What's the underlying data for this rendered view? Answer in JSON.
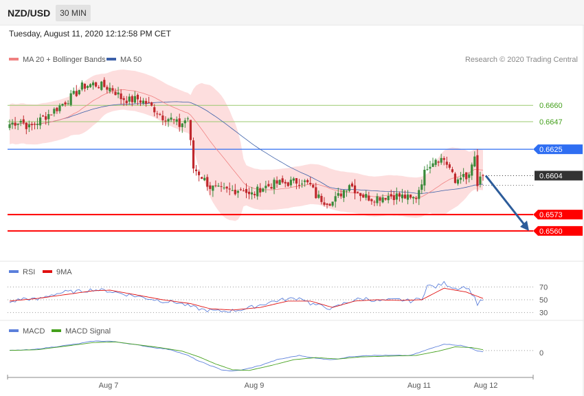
{
  "header": {
    "pair": "NZD/USD",
    "timeframe": "30 MIN",
    "datetime": "Tuesday, August 11, 2020 12:12:58 PM CET"
  },
  "colors": {
    "ma20": "#f08080",
    "ma50": "#3b5fa8",
    "band": "#fddede",
    "bull": "#3a8a3a",
    "bear": "#c0282d",
    "blue_level": "#2f6ef2",
    "red_level": "#ff0000",
    "green_level": "#9ac96e",
    "arrow": "#2d5c9a",
    "rsi": "#5b7fdb",
    "rsi_ma": "#e01010",
    "macd": "#5b7fdb",
    "macd_signal": "#44a01c"
  },
  "chart_data": [
    {
      "type": "candlestick",
      "legend": [
        {
          "name": "MA 20 + Bollinger Bands"
        },
        {
          "name": "MA 50"
        }
      ],
      "credit": "Research © 2020 Trading Central",
      "ylim": [
        0.6538,
        0.6699
      ],
      "x_ticks": [
        "Aug 7",
        "Aug 9",
        "Aug 11",
        "Aug 12"
      ],
      "levels": [
        {
          "label": "0.6660",
          "value": 0.666,
          "kind": "green"
        },
        {
          "label": "0.6647",
          "value": 0.6647,
          "kind": "green"
        },
        {
          "label": "0.6625",
          "value": 0.6625,
          "kind": "blue"
        },
        {
          "label": "0.6604",
          "value": 0.6604,
          "kind": "current"
        },
        {
          "label": "0.6573",
          "value": 0.6573,
          "kind": "red"
        },
        {
          "label": "0.6560",
          "value": 0.656,
          "kind": "red"
        }
      ],
      "close_anchors": [
        [
          0,
          0.6645
        ],
        [
          4,
          0.6648
        ],
        [
          7,
          0.6642
        ],
        [
          12,
          0.665
        ],
        [
          16,
          0.6656
        ],
        [
          20,
          0.6663
        ],
        [
          24,
          0.667
        ],
        [
          26,
          0.6675
        ],
        [
          30,
          0.6677
        ],
        [
          34,
          0.6675
        ],
        [
          37,
          0.6673
        ],
        [
          40,
          0.6666
        ],
        [
          43,
          0.6664
        ],
        [
          46,
          0.6665
        ],
        [
          49,
          0.6662
        ],
        [
          52,
          0.6657
        ],
        [
          55,
          0.6651
        ],
        [
          58,
          0.6649
        ],
        [
          61,
          0.6644
        ],
        [
          64,
          0.665
        ],
        [
          66,
          0.661
        ],
        [
          68,
          0.6606
        ],
        [
          72,
          0.6595
        ],
        [
          76,
          0.6592
        ],
        [
          80,
          0.6592
        ],
        [
          84,
          0.6594
        ],
        [
          86,
          0.6588
        ],
        [
          88,
          0.659
        ],
        [
          90,
          0.6594
        ],
        [
          93,
          0.6596
        ],
        [
          96,
          0.6598
        ],
        [
          99,
          0.6598
        ],
        [
          102,
          0.6599
        ],
        [
          105,
          0.66
        ],
        [
          108,
          0.6596
        ],
        [
          110,
          0.6588
        ],
        [
          113,
          0.6584
        ],
        [
          116,
          0.6583
        ],
        [
          119,
          0.659
        ],
        [
          122,
          0.6598
        ],
        [
          124,
          0.6593
        ],
        [
          127,
          0.6588
        ],
        [
          130,
          0.6586
        ],
        [
          133,
          0.6587
        ],
        [
          136,
          0.6588
        ],
        [
          139,
          0.6588
        ],
        [
          142,
          0.6587
        ],
        [
          144,
          0.6585
        ],
        [
          146,
          0.6587
        ],
        [
          148,
          0.66
        ],
        [
          150,
          0.6612
        ],
        [
          153,
          0.6618
        ],
        [
          156,
          0.6617
        ],
        [
          158,
          0.661
        ],
        [
          160,
          0.6598
        ],
        [
          162,
          0.6605
        ],
        [
          164,
          0.66
        ],
        [
          166,
          0.661
        ],
        [
          167,
          0.6618
        ],
        [
          168,
          0.6596
        ],
        [
          169,
          0.66
        ],
        [
          170,
          0.6604
        ]
      ],
      "current_price": 0.6604,
      "forecast_target": 0.656
    },
    {
      "type": "line",
      "name": "RSI panel",
      "legend": [
        {
          "name": "RSI"
        },
        {
          "name": "9MA"
        }
      ],
      "ylim": [
        20,
        80
      ],
      "y_ticks": [
        {
          "label": "70",
          "value": 70
        },
        {
          "label": "50",
          "value": 50
        },
        {
          "label": "30",
          "value": 30
        }
      ],
      "rsi_anchors": [
        [
          0,
          46
        ],
        [
          5,
          52
        ],
        [
          10,
          50
        ],
        [
          15,
          58
        ],
        [
          20,
          62
        ],
        [
          25,
          63
        ],
        [
          30,
          66
        ],
        [
          35,
          64
        ],
        [
          40,
          60
        ],
        [
          45,
          56
        ],
        [
          50,
          52
        ],
        [
          55,
          48
        ],
        [
          60,
          46
        ],
        [
          63,
          42
        ],
        [
          66,
          38
        ],
        [
          70,
          34
        ],
        [
          75,
          32
        ],
        [
          80,
          33
        ],
        [
          85,
          36
        ],
        [
          90,
          42
        ],
        [
          95,
          48
        ],
        [
          100,
          51
        ],
        [
          105,
          53
        ],
        [
          108,
          44
        ],
        [
          112,
          40
        ],
        [
          116,
          36
        ],
        [
          120,
          44
        ],
        [
          124,
          50
        ],
        [
          128,
          52
        ],
        [
          132,
          48
        ],
        [
          136,
          49
        ],
        [
          140,
          50
        ],
        [
          144,
          48
        ],
        [
          148,
          52
        ],
        [
          150,
          72
        ],
        [
          153,
          70
        ],
        [
          156,
          76
        ],
        [
          160,
          68
        ],
        [
          164,
          70
        ],
        [
          166,
          60
        ],
        [
          167,
          54
        ],
        [
          168,
          43
        ],
        [
          170,
          50
        ]
      ],
      "ma_anchors": [
        [
          0,
          48
        ],
        [
          10,
          52
        ],
        [
          20,
          58
        ],
        [
          30,
          64
        ],
        [
          36,
          65
        ],
        [
          45,
          58
        ],
        [
          55,
          50
        ],
        [
          65,
          44
        ],
        [
          72,
          36
        ],
        [
          80,
          34
        ],
        [
          90,
          38
        ],
        [
          100,
          48
        ],
        [
          108,
          48
        ],
        [
          116,
          38
        ],
        [
          124,
          48
        ],
        [
          132,
          50
        ],
        [
          140,
          49
        ],
        [
          148,
          50
        ],
        [
          156,
          68
        ],
        [
          164,
          62
        ],
        [
          170,
          52
        ]
      ]
    },
    {
      "type": "line",
      "name": "MACD panel",
      "legend": [
        {
          "name": "MACD"
        },
        {
          "name": "MACD Signal"
        }
      ],
      "ylim": [
        -0.003,
        0.0022
      ],
      "y_ticks": [
        {
          "label": "0",
          "value": 0
        }
      ],
      "macd_anchors": [
        [
          0,
          0.0003
        ],
        [
          8,
          0.0004
        ],
        [
          16,
          0.0008
        ],
        [
          24,
          0.0012
        ],
        [
          30,
          0.0016
        ],
        [
          36,
          0.0016
        ],
        [
          42,
          0.0013
        ],
        [
          50,
          0.0008
        ],
        [
          58,
          0.0004
        ],
        [
          64,
          -0.0004
        ],
        [
          68,
          -0.0012
        ],
        [
          72,
          -0.0018
        ],
        [
          76,
          -0.0024
        ],
        [
          80,
          -0.0026
        ],
        [
          84,
          -0.0024
        ],
        [
          90,
          -0.0018
        ],
        [
          96,
          -0.001
        ],
        [
          104,
          -0.0004
        ],
        [
          110,
          -0.0008
        ],
        [
          116,
          -0.001
        ],
        [
          122,
          -0.0006
        ],
        [
          128,
          -0.0004
        ],
        [
          136,
          -0.0004
        ],
        [
          144,
          -0.0004
        ],
        [
          150,
          0.0004
        ],
        [
          156,
          0.0012
        ],
        [
          162,
          0.001
        ],
        [
          166,
          0.0006
        ],
        [
          168,
          0.0002
        ],
        [
          170,
          0.0001
        ]
      ],
      "signal_anchors": [
        [
          0,
          0.0003
        ],
        [
          10,
          0.0004
        ],
        [
          20,
          0.0009
        ],
        [
          30,
          0.0014
        ],
        [
          38,
          0.0015
        ],
        [
          46,
          0.0011
        ],
        [
          54,
          0.0007
        ],
        [
          62,
          0.0002
        ],
        [
          68,
          -0.0006
        ],
        [
          74,
          -0.0016
        ],
        [
          80,
          -0.0024
        ],
        [
          86,
          -0.0025
        ],
        [
          94,
          -0.0018
        ],
        [
          102,
          -0.001
        ],
        [
          110,
          -0.0007
        ],
        [
          118,
          -0.0009
        ],
        [
          126,
          -0.0006
        ],
        [
          136,
          -0.0005
        ],
        [
          146,
          -0.0004
        ],
        [
          154,
          0.0002
        ],
        [
          160,
          0.0008
        ],
        [
          166,
          0.0007
        ],
        [
          170,
          0.0004
        ]
      ]
    }
  ]
}
